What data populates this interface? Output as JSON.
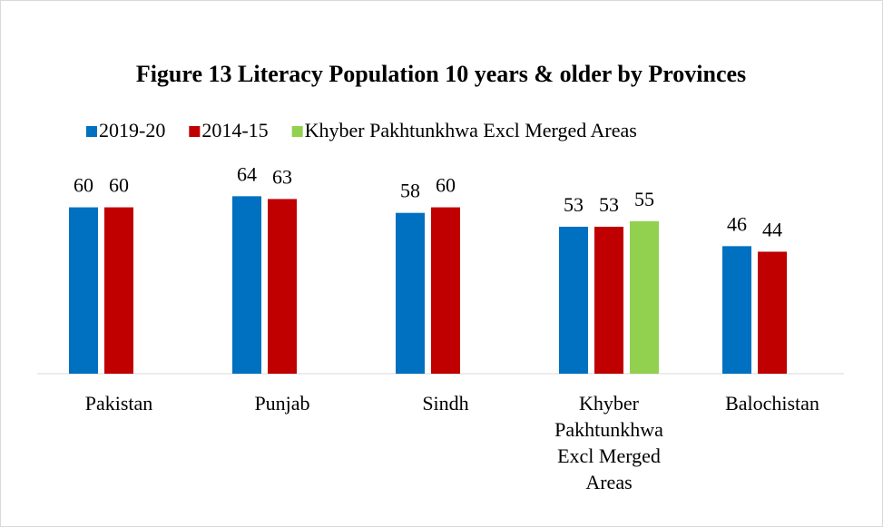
{
  "chart_data": {
    "type": "bar",
    "title": "Figure 13 Literacy Population 10 years & older by Provinces",
    "categories": [
      "Pakistan",
      "Punjab",
      "Sindh",
      "Khyber Pakhtunkhwa Excl Merged Areas",
      "Balochistan"
    ],
    "series": [
      {
        "name": "2019-20",
        "color": "#0070c0",
        "values": [
          60,
          64,
          58,
          53,
          46
        ]
      },
      {
        "name": "2014-15",
        "color": "#c00000",
        "values": [
          60,
          63,
          60,
          53,
          44
        ]
      },
      {
        "name": "Khyber Pakhtunkhwa Excl Merged Areas",
        "color": "#92d050",
        "values": [
          null,
          null,
          null,
          55,
          null
        ]
      }
    ],
    "ylim": [
      0,
      70
    ],
    "legend": "top",
    "grid": false
  }
}
